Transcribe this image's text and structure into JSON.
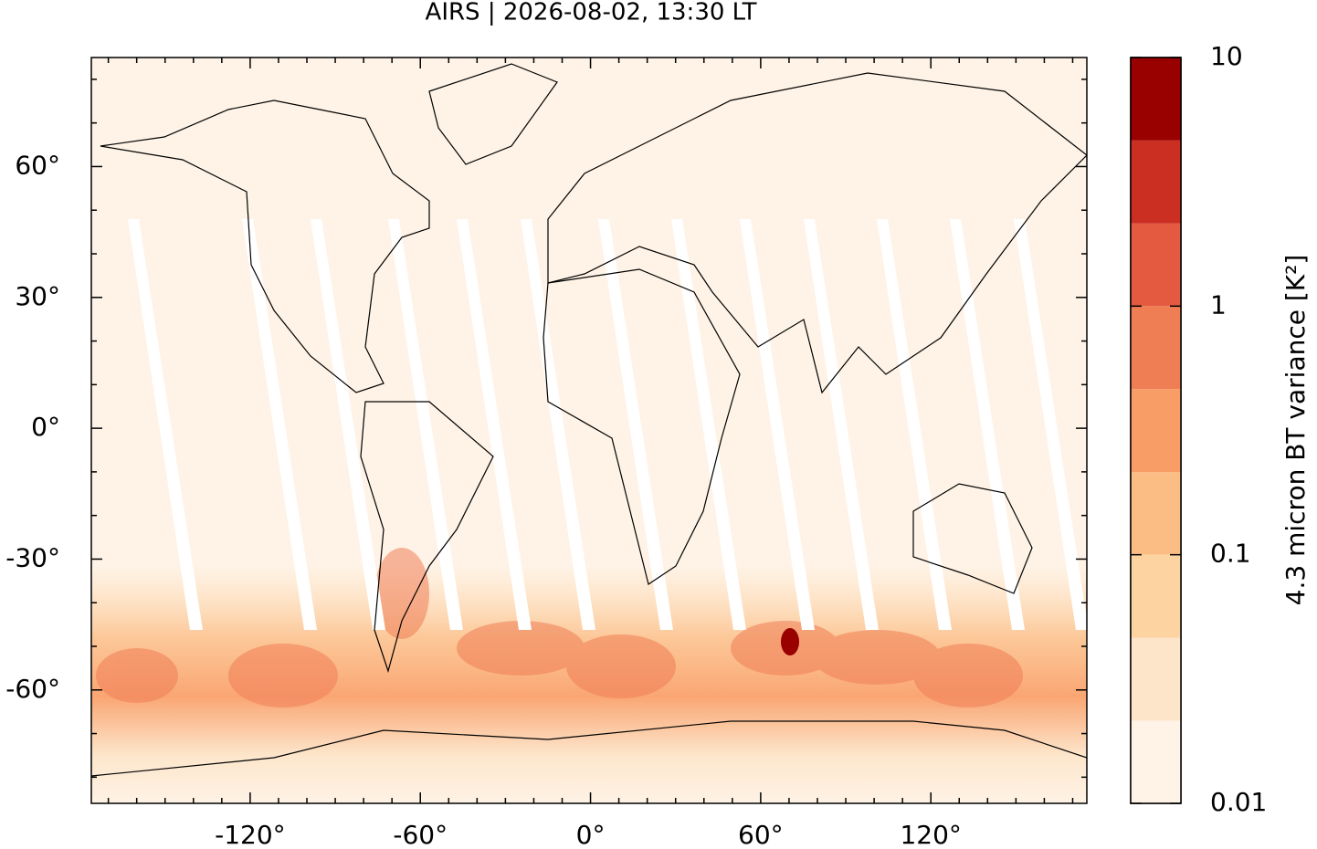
{
  "title": "AIRS | 2026-08-02, 13:30 LT",
  "map": {
    "xlim": [
      -176,
      175
    ],
    "ylim": [
      -86,
      85
    ],
    "xticks": [
      {
        "value": -120,
        "label": "-120°"
      },
      {
        "value": -60,
        "label": "-60°"
      },
      {
        "value": 0,
        "label": "0°"
      },
      {
        "value": 60,
        "label": "60°"
      },
      {
        "value": 120,
        "label": "120°"
      }
    ],
    "yticks": [
      {
        "value": -60,
        "label": "-60°"
      },
      {
        "value": -30,
        "label": "-30°"
      },
      {
        "value": 0,
        "label": "0°"
      },
      {
        "value": 30,
        "label": "30°"
      },
      {
        "value": 60,
        "label": "60°"
      }
    ],
    "xticks_minor": [
      -170,
      -160,
      -150,
      -140,
      -130,
      -110,
      -100,
      -90,
      -80,
      -70,
      -50,
      -40,
      -30,
      -20,
      -10,
      10,
      20,
      30,
      40,
      50,
      70,
      80,
      90,
      100,
      110,
      130,
      140,
      150,
      160,
      170
    ],
    "yticks_minor": [
      -80,
      -70,
      -50,
      -40,
      -20,
      -10,
      10,
      20,
      40,
      50,
      70,
      80
    ]
  },
  "colorbar": {
    "label": "4.3 micron BT variance [K²]",
    "scale": "log",
    "lim": [
      0.01,
      10
    ],
    "ticks": [
      0.01,
      0.1,
      1,
      10
    ],
    "levels": [
      0.01,
      0.0215,
      0.0464,
      0.1,
      0.215,
      0.464,
      1,
      2.15,
      4.64,
      10
    ],
    "colors": [
      "#fef3e6",
      "#fde5c9",
      "#fdd3a2",
      "#fcbd85",
      "#f99d66",
      "#f07e55",
      "#e35a40",
      "#ca2f22",
      "#990000"
    ]
  }
}
